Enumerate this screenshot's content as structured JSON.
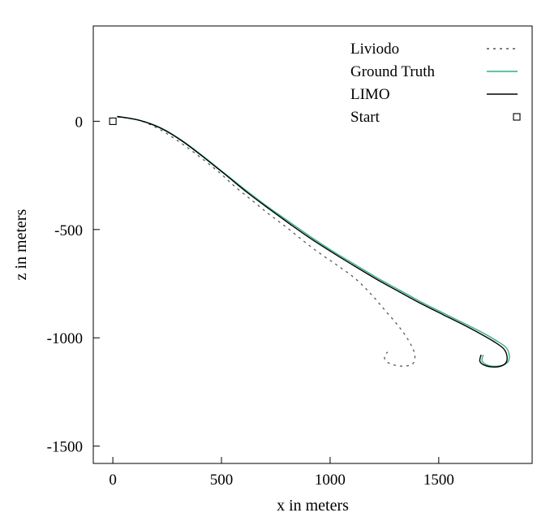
{
  "chart_data": {
    "type": "line",
    "title": "",
    "xlabel": "x in meters",
    "ylabel": "z in meters",
    "xlim": [
      -90,
      1930
    ],
    "ylim": [
      -1580,
      440
    ],
    "xticks": [
      0,
      500,
      1000,
      1500
    ],
    "yticks": [
      0,
      -500,
      -1000,
      -1500
    ],
    "xtick_labels": [
      "0",
      "500",
      "1000",
      "1500"
    ],
    "ytick_labels": [
      "0",
      "-500",
      "-1000",
      "-1500"
    ],
    "legend_position": "top-right",
    "grid": false,
    "series": [
      {
        "name": "Liviodo",
        "style": "dashed",
        "color": "#555555",
        "x": [
          20,
          120,
          220,
          320,
          420,
          500,
          560,
          640,
          720,
          800,
          880,
          960,
          1040,
          1120,
          1190,
          1250,
          1310,
          1360,
          1388,
          1385,
          1350,
          1300,
          1260,
          1250,
          1265
        ],
        "y": [
          20,
          5,
          -40,
          -105,
          -180,
          -245,
          -300,
          -365,
          -430,
          -490,
          -555,
          -615,
          -670,
          -730,
          -800,
          -870,
          -940,
          -1010,
          -1070,
          -1115,
          -1130,
          -1127,
          -1110,
          -1085,
          -1065
        ]
      },
      {
        "name": "Ground Truth",
        "style": "solid",
        "color": "#2fae8b",
        "x": [
          20,
          120,
          220,
          320,
          420,
          520,
          620,
          720,
          820,
          920,
          1020,
          1120,
          1220,
          1320,
          1420,
          1520,
          1620,
          1700,
          1760,
          1810,
          1825,
          1815,
          1780,
          1730,
          1700,
          1705
        ],
        "y": [
          22,
          5,
          -30,
          -90,
          -165,
          -245,
          -325,
          -400,
          -470,
          -540,
          -605,
          -665,
          -725,
          -780,
          -835,
          -885,
          -935,
          -975,
          -1010,
          -1045,
          -1085,
          -1115,
          -1130,
          -1128,
          -1108,
          -1078
        ]
      },
      {
        "name": "LIMO",
        "style": "solid",
        "color": "#000000",
        "x": [
          20,
          120,
          220,
          320,
          420,
          520,
          620,
          720,
          820,
          920,
          1020,
          1120,
          1220,
          1320,
          1420,
          1520,
          1620,
          1695,
          1755,
          1800,
          1815,
          1805,
          1770,
          1720,
          1690,
          1695
        ],
        "y": [
          22,
          5,
          -32,
          -92,
          -168,
          -248,
          -330,
          -405,
          -478,
          -548,
          -612,
          -673,
          -733,
          -788,
          -843,
          -893,
          -943,
          -983,
          -1018,
          -1052,
          -1092,
          -1120,
          -1134,
          -1130,
          -1110,
          -1078
        ]
      }
    ],
    "markers": [
      {
        "name": "Start",
        "shape": "square",
        "x": 0,
        "y": 0,
        "color": "#000000"
      }
    ]
  }
}
